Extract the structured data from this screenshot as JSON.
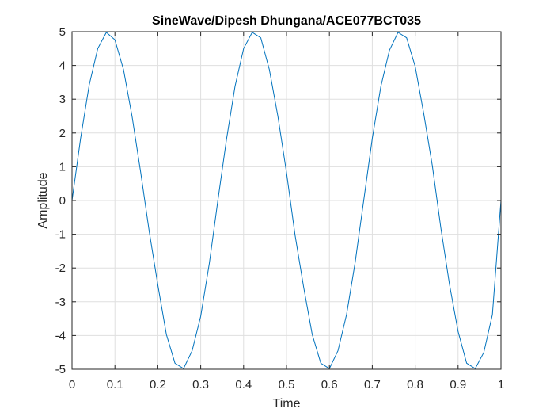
{
  "chart_data": {
    "type": "line",
    "title": "SineWave/Dipesh Dhungana/ACE077BCT035",
    "xlabel": "Time",
    "ylabel": "Amplitude",
    "xlim": [
      0,
      1
    ],
    "ylim": [
      -5,
      5
    ],
    "xticks": [
      0,
      0.1,
      0.2,
      0.3,
      0.4,
      0.5,
      0.6,
      0.7,
      0.8,
      0.9,
      1
    ],
    "xtick_labels": [
      "0",
      "0.1",
      "0.2",
      "0.3",
      "0.4",
      "0.5",
      "0.6",
      "0.7",
      "0.8",
      "0.9",
      "1"
    ],
    "yticks": [
      -5,
      -4,
      -3,
      -2,
      -1,
      0,
      1,
      2,
      3,
      4,
      5
    ],
    "ytick_labels": [
      "-5",
      "-4",
      "-3",
      "-2",
      "-1",
      "0",
      "1",
      "2",
      "3",
      "4",
      "5"
    ],
    "grid": true,
    "box": true,
    "series": [
      {
        "color": "#0072BD",
        "x": [
          0,
          0.02,
          0.04,
          0.06,
          0.08,
          0.1,
          0.12,
          0.14,
          0.16,
          0.18,
          0.2,
          0.22,
          0.24,
          0.26,
          0.28,
          0.3,
          0.32,
          0.34,
          0.36,
          0.38,
          0.4,
          0.42,
          0.44,
          0.46,
          0.48,
          0.5,
          0.52,
          0.54,
          0.56,
          0.58,
          0.6,
          0.62,
          0.64,
          0.66,
          0.68,
          0.7,
          0.72,
          0.74,
          0.76,
          0.78,
          0.8,
          0.82,
          0.84,
          0.86,
          0.88,
          0.9,
          0.92,
          0.94,
          0.96,
          0.98,
          1
        ],
        "y": [
          0,
          1.84,
          3.42,
          4.5,
          4.98,
          4.76,
          3.88,
          2.49,
          0.84,
          -0.92,
          -2.5,
          -3.97,
          -4.82,
          -4.98,
          -4.45,
          -3.43,
          -1.87,
          0,
          1.8,
          3.38,
          4.5,
          4.98,
          4.82,
          3.88,
          2.49,
          0.83,
          -1.03,
          -2.57,
          -3.97,
          -4.82,
          -4.98,
          -4.45,
          -3.38,
          -1.84,
          0,
          1.84,
          3.38,
          4.45,
          4.98,
          4.82,
          3.97,
          2.57,
          1.03,
          -0.83,
          -2.49,
          -3.88,
          -4.82,
          -4.98,
          -4.5,
          -3.38,
          0
        ]
      }
    ]
  }
}
